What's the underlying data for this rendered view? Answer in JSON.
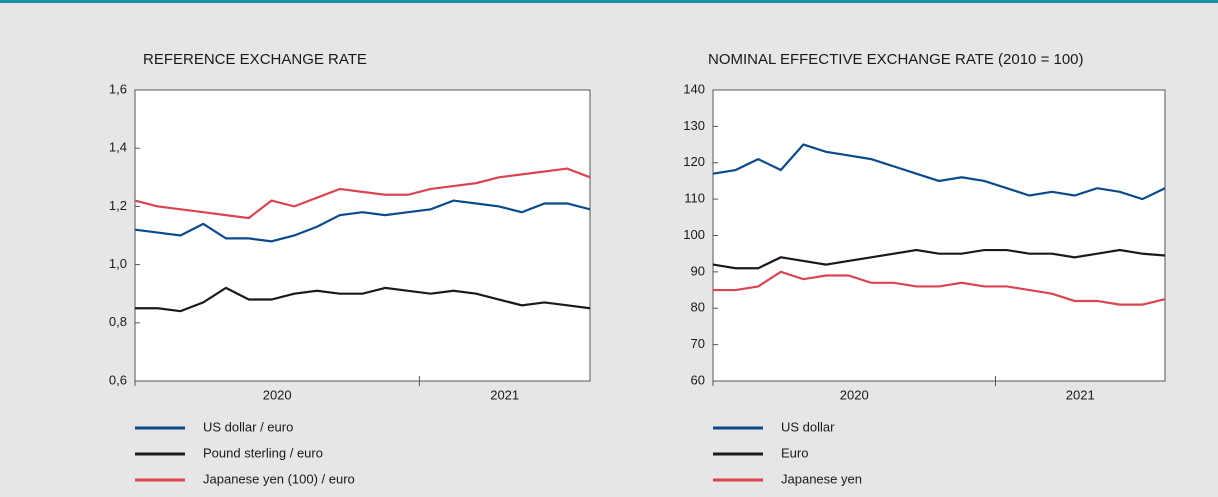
{
  "chart_data": [
    {
      "type": "line",
      "title": "REFERENCE EXCHANGE RATE",
      "x": [
        2020.0,
        2020.08,
        2020.16,
        2020.24,
        2020.32,
        2020.4,
        2020.48,
        2020.56,
        2020.64,
        2020.72,
        2020.8,
        2020.88,
        2020.96,
        2021.04,
        2021.12,
        2021.2,
        2021.28,
        2021.36,
        2021.44,
        2021.52,
        2021.6
      ],
      "xlim": [
        2020.0,
        2021.6
      ],
      "xticks": [
        {
          "value": 2020.5,
          "label": "2020"
        },
        {
          "value": 2021.3,
          "label": "2021"
        }
      ],
      "ylim": [
        0.6,
        1.6
      ],
      "yticks": [
        {
          "value": 0.6,
          "label": "0,6"
        },
        {
          "value": 0.8,
          "label": "0,8"
        },
        {
          "value": 1.0,
          "label": "1,0"
        },
        {
          "value": 1.2,
          "label": "1,2"
        },
        {
          "value": 1.4,
          "label": "1,4"
        },
        {
          "value": 1.6,
          "label": "1,6"
        }
      ],
      "series": [
        {
          "name": "US dollar / euro",
          "color": "#0b4a8b",
          "values": [
            1.12,
            1.11,
            1.1,
            1.14,
            1.09,
            1.09,
            1.08,
            1.1,
            1.13,
            1.17,
            1.18,
            1.17,
            1.18,
            1.19,
            1.22,
            1.21,
            1.2,
            1.18,
            1.21,
            1.21,
            1.19
          ]
        },
        {
          "name": "Pound sterling / euro",
          "color": "#1a1a1a",
          "values": [
            0.85,
            0.85,
            0.84,
            0.87,
            0.92,
            0.88,
            0.88,
            0.9,
            0.91,
            0.9,
            0.9,
            0.92,
            0.91,
            0.9,
            0.91,
            0.9,
            0.88,
            0.86,
            0.87,
            0.86,
            0.85
          ]
        },
        {
          "name": "Japanese yen (100) / euro",
          "color": "#d94550",
          "values": [
            1.22,
            1.2,
            1.19,
            1.18,
            1.17,
            1.16,
            1.22,
            1.2,
            1.23,
            1.26,
            1.25,
            1.24,
            1.24,
            1.26,
            1.27,
            1.28,
            1.3,
            1.31,
            1.32,
            1.33,
            1.3
          ]
        }
      ]
    },
    {
      "type": "line",
      "title": "NOMINAL EFFECTIVE EXCHANGE RATE (2010 = 100)",
      "x": [
        2020.0,
        2020.08,
        2020.16,
        2020.24,
        2020.32,
        2020.4,
        2020.48,
        2020.56,
        2020.64,
        2020.72,
        2020.8,
        2020.88,
        2020.96,
        2021.04,
        2021.12,
        2021.2,
        2021.28,
        2021.36,
        2021.44,
        2021.52,
        2021.6
      ],
      "xlim": [
        2020.0,
        2021.6
      ],
      "xticks": [
        {
          "value": 2020.5,
          "label": "2020"
        },
        {
          "value": 2021.3,
          "label": "2021"
        }
      ],
      "ylim": [
        60,
        140
      ],
      "yticks": [
        60,
        70,
        80,
        90,
        100,
        110,
        120,
        130,
        140
      ],
      "series": [
        {
          "name": "US dollar",
          "color": "#0b4a8b",
          "values": [
            117,
            118,
            121,
            118,
            125,
            123,
            122,
            121,
            119,
            117,
            115,
            116,
            115,
            113,
            111,
            112,
            111,
            113,
            112,
            110,
            113
          ]
        },
        {
          "name": "Euro",
          "color": "#1a1a1a",
          "values": [
            92,
            91,
            91,
            94,
            93,
            92,
            93,
            94,
            95,
            96,
            95,
            95,
            96,
            96,
            95,
            95,
            94,
            95,
            96,
            95,
            94.5
          ]
        },
        {
          "name": "Japanese yen",
          "color": "#d94550",
          "values": [
            85,
            85,
            86,
            90,
            88,
            89,
            89,
            87,
            87,
            86,
            86,
            87,
            86,
            86,
            85,
            84,
            82,
            82,
            81,
            81,
            82.5
          ]
        }
      ]
    }
  ]
}
